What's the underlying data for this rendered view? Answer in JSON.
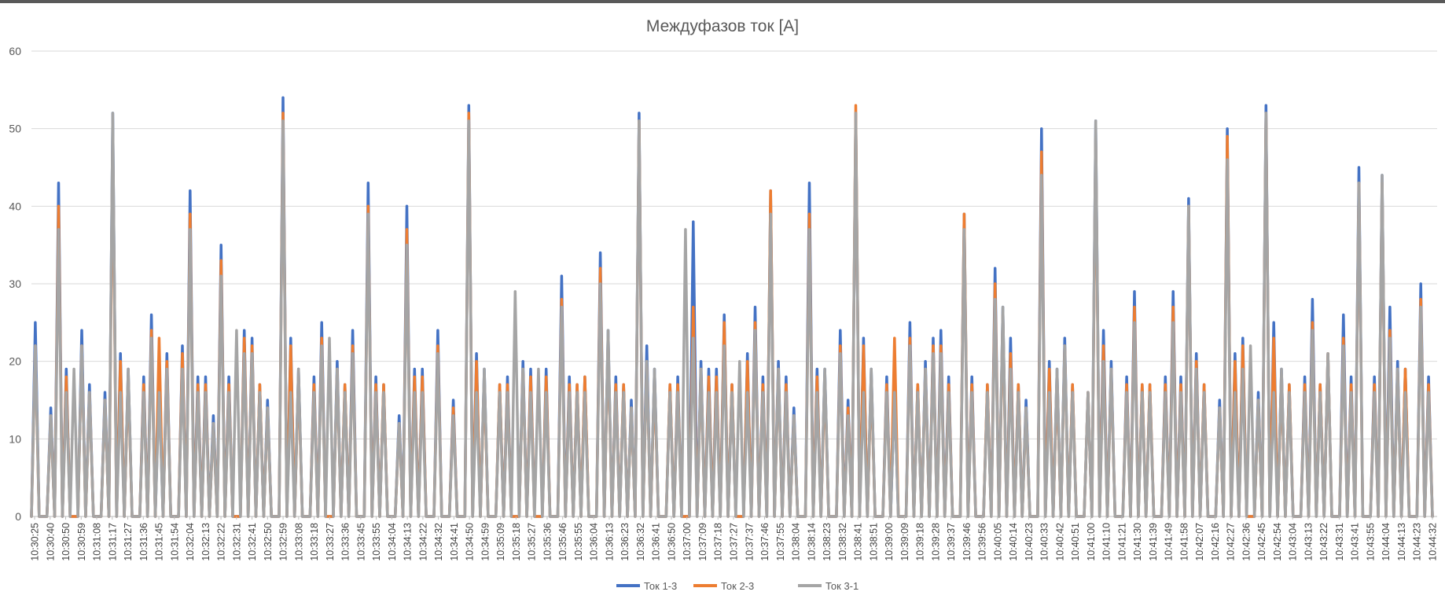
{
  "chart_data": {
    "type": "line",
    "title": "Междуфазов ток [A]",
    "xlabel": "",
    "ylabel": "",
    "ylim": [
      0,
      60
    ],
    "yticks": [
      0,
      10,
      20,
      30,
      40,
      50,
      60
    ],
    "grid": true,
    "legend_position": "bottom",
    "x_tick_labels": [
      "10:30:25",
      "10:30:40",
      "10:30:50",
      "10:30:59",
      "10:31:08",
      "10:31:17",
      "10:31:27",
      "10:31:36",
      "10:31:45",
      "10:31:54",
      "10:32:04",
      "10:32:13",
      "10:32:22",
      "10:32:31",
      "10:32:41",
      "10:32:50",
      "10:32:59",
      "10:33:08",
      "10:33:18",
      "10:33:27",
      "10:33:36",
      "10:33:45",
      "10:33:55",
      "10:34:04",
      "10:34:13",
      "10:34:22",
      "10:34:32",
      "10:34:41",
      "10:34:50",
      "10:34:59",
      "10:35:09",
      "10:35:18",
      "10:35:27",
      "10:35:36",
      "10:35:46",
      "10:35:55",
      "10:36:04",
      "10:36:13",
      "10:36:23",
      "10:36:32",
      "10:36:41",
      "10:36:50",
      "10:37:00",
      "10:37:09",
      "10:37:18",
      "10:37:27",
      "10:37:37",
      "10:37:46",
      "10:37:55",
      "10:38:04",
      "10:38:14",
      "10:38:23",
      "10:38:32",
      "10:38:41",
      "10:38:51",
      "10:39:00",
      "10:39:09",
      "10:39:18",
      "10:39:28",
      "10:39:37",
      "10:39:46",
      "10:39:56",
      "10:40:05",
      "10:40:14",
      "10:40:23",
      "10:40:33",
      "10:40:42",
      "10:40:51",
      "10:41:00",
      "10:41:10",
      "10:41:21",
      "10:41:30",
      "10:41:39",
      "10:41:49",
      "10:41:58",
      "10:42:07",
      "10:42:16",
      "10:42:27",
      "10:42:36",
      "10:42:45",
      "10:42:54",
      "10:43:04",
      "10:43:13",
      "10:43:22",
      "10:43:31",
      "10:43:41",
      "10:43:55",
      "10:44:04",
      "10:44:13",
      "10:44:23",
      "10:44:32"
    ],
    "series": [
      {
        "name": "Ток 1-3",
        "color": "#4472C4",
        "peaks": [
          25,
          0,
          14,
          43,
          19,
          0,
          24,
          17,
          0,
          16,
          52,
          21,
          19,
          0,
          18,
          26,
          17,
          21,
          0,
          22,
          42,
          18,
          18,
          13,
          35,
          18,
          0,
          24,
          23,
          17,
          15,
          0,
          54,
          23,
          19,
          0,
          18,
          25,
          0,
          20,
          17,
          24,
          0,
          43,
          18,
          17,
          0,
          13,
          40,
          19,
          19,
          0,
          24,
          0,
          15,
          0,
          53,
          21,
          19,
          0,
          17,
          18,
          0,
          20,
          19,
          0,
          19,
          0,
          31,
          18,
          17,
          18,
          0,
          34,
          24,
          18,
          17,
          15,
          52,
          22,
          19,
          0,
          17,
          18,
          0,
          38,
          20,
          19,
          19,
          26,
          17,
          0,
          21,
          27,
          18,
          42,
          20,
          18,
          14,
          0,
          43,
          19,
          19,
          0,
          24,
          15,
          52,
          23,
          19,
          0,
          18,
          16,
          0,
          25,
          17,
          20,
          23,
          24,
          18,
          0,
          39,
          18,
          0,
          17,
          32,
          27,
          23,
          17,
          15,
          0,
          50,
          20,
          19,
          23,
          17,
          0,
          16,
          51,
          24,
          20,
          0,
          18,
          29,
          17,
          17,
          0,
          18,
          29,
          18,
          41,
          21,
          17,
          0,
          15,
          50,
          21,
          23,
          0,
          16,
          53,
          25,
          19,
          17,
          0,
          18,
          28,
          17,
          21,
          0,
          26,
          18,
          45,
          0,
          18,
          44,
          27,
          20,
          19,
          0,
          30,
          18
        ],
        "mins": [
          0,
          0,
          0,
          0,
          0,
          0,
          0,
          0,
          0,
          0,
          0,
          0,
          0,
          0,
          0,
          0,
          0,
          0,
          0,
          0,
          0,
          0,
          0,
          0,
          0,
          0,
          0,
          0,
          0,
          0,
          0,
          0,
          0,
          0,
          0,
          0,
          0,
          0,
          0,
          0,
          0,
          0,
          0,
          0,
          0,
          0,
          0,
          0,
          0,
          0,
          0,
          0,
          0,
          0,
          0,
          0,
          0,
          0,
          0,
          0,
          0,
          0,
          0,
          0,
          0,
          0,
          0,
          0,
          0,
          0,
          0,
          0,
          0,
          0,
          0,
          0,
          0,
          0,
          0,
          0,
          0,
          0,
          0,
          0,
          0,
          0,
          0,
          0,
          0,
          0,
          0,
          0,
          0,
          0,
          0,
          0,
          0,
          0,
          0,
          0,
          0,
          0,
          0,
          0,
          0,
          0,
          0,
          0,
          0,
          0,
          0,
          0,
          0,
          0,
          0,
          0,
          0,
          0,
          0,
          0,
          0,
          0,
          0,
          0,
          0,
          0,
          0,
          0,
          0,
          0,
          0,
          0,
          0,
          0,
          0,
          0,
          0,
          0,
          0,
          0,
          0,
          0,
          0,
          0,
          0,
          0,
          0,
          0,
          0,
          0,
          0,
          0,
          0,
          0,
          0,
          0,
          0,
          0,
          0,
          0,
          0,
          0,
          0,
          0,
          0,
          0,
          0,
          0,
          0,
          0,
          0,
          0,
          0,
          0,
          0,
          0,
          0,
          0,
          0,
          0,
          0,
          0,
          0,
          0,
          0
        ]
      },
      {
        "name": "Ток 2-3",
        "color": "#ED7D31",
        "peaks": [
          22,
          0,
          13,
          40,
          18,
          0,
          22,
          16,
          0,
          15,
          49,
          20,
          18,
          0,
          17,
          24,
          23,
          20,
          0,
          21,
          39,
          17,
          17,
          12,
          33,
          17,
          0,
          23,
          22,
          17,
          14,
          0,
          52,
          22,
          18,
          0,
          17,
          23,
          0,
          19,
          17,
          22,
          0,
          40,
          17,
          17,
          0,
          12,
          37,
          18,
          18,
          0,
          22,
          0,
          14,
          0,
          52,
          20,
          18,
          0,
          17,
          17,
          0,
          19,
          18,
          0,
          18,
          0,
          28,
          17,
          17,
          18,
          0,
          32,
          23,
          17,
          17,
          14,
          51,
          20,
          18,
          0,
          17,
          17,
          0,
          27,
          19,
          18,
          18,
          25,
          17,
          0,
          20,
          25,
          17,
          42,
          19,
          17,
          13,
          0,
          39,
          18,
          18,
          0,
          22,
          14,
          53,
          22,
          18,
          0,
          17,
          23,
          0,
          23,
          17,
          19,
          22,
          22,
          17,
          0,
          39,
          17,
          0,
          17,
          30,
          26,
          21,
          17,
          14,
          0,
          47,
          19,
          18,
          22,
          17,
          0,
          16,
          49,
          22,
          19,
          0,
          17,
          27,
          17,
          17,
          0,
          17,
          27,
          17,
          40,
          20,
          17,
          0,
          14,
          49,
          20,
          22,
          0,
          15,
          52,
          23,
          18,
          17,
          0,
          17,
          25,
          17,
          21,
          0,
          23,
          17,
          43,
          0,
          17,
          43,
          24,
          19,
          19,
          0,
          28,
          17
        ],
        "mins": [
          0,
          0,
          0,
          0,
          0,
          0,
          0,
          0,
          0,
          0,
          0,
          0,
          0,
          0,
          0,
          0,
          0,
          0,
          0,
          0,
          0,
          0,
          0,
          0,
          0,
          0,
          0,
          0,
          0,
          0,
          0,
          0,
          0,
          0,
          0,
          0,
          0,
          0,
          0,
          0,
          0,
          0,
          0,
          0,
          0,
          0,
          0,
          0,
          0,
          0,
          0,
          0,
          0,
          0,
          0,
          0,
          0,
          0,
          0,
          0,
          0,
          0,
          0,
          0,
          0,
          0,
          0,
          0,
          0,
          0,
          0,
          0,
          0,
          0,
          0,
          0,
          0,
          0,
          0,
          0,
          0,
          0,
          0,
          0,
          0,
          0,
          0,
          0,
          0,
          0,
          0,
          0,
          0,
          0,
          0,
          0,
          0,
          0,
          0,
          0,
          0,
          0,
          0,
          0,
          0,
          0,
          0,
          0,
          0,
          0,
          0,
          0,
          0,
          0,
          0,
          0,
          0,
          0,
          0,
          0,
          0,
          0,
          0,
          0,
          0,
          0,
          0,
          0,
          0,
          0,
          0,
          0,
          0,
          0,
          0,
          0,
          0,
          0,
          0,
          0,
          0,
          0,
          0,
          0,
          0,
          0,
          0,
          0,
          0,
          0,
          0,
          0,
          0,
          0,
          0,
          0,
          0,
          0,
          0,
          0,
          0,
          0,
          0,
          0,
          0,
          0,
          0,
          0,
          0,
          0,
          0,
          0,
          0,
          0,
          0,
          0,
          0,
          0,
          0,
          0,
          0,
          0,
          0,
          0,
          0
        ]
      },
      {
        "name": "Ток 3-1",
        "color": "#A5A5A5",
        "peaks": [
          22,
          0,
          13,
          37,
          16,
          19,
          22,
          16,
          0,
          15,
          52,
          16,
          19,
          0,
          16,
          23,
          16,
          19,
          0,
          19,
          37,
          16,
          16,
          12,
          31,
          16,
          24,
          21,
          21,
          16,
          14,
          0,
          51,
          16,
          19,
          0,
          16,
          22,
          23,
          19,
          16,
          21,
          0,
          39,
          16,
          16,
          0,
          12,
          35,
          16,
          16,
          0,
          21,
          0,
          13,
          0,
          51,
          16,
          19,
          0,
          16,
          16,
          29,
          19,
          16,
          19,
          16,
          0,
          27,
          16,
          16,
          16,
          0,
          30,
          24,
          16,
          16,
          14,
          51,
          20,
          19,
          0,
          16,
          16,
          37,
          23,
          19,
          16,
          16,
          22,
          16,
          20,
          16,
          24,
          16,
          39,
          19,
          16,
          13,
          0,
          37,
          16,
          19,
          0,
          21,
          13,
          52,
          16,
          19,
          0,
          16,
          16,
          0,
          22,
          16,
          19,
          21,
          21,
          16,
          0,
          37,
          16,
          0,
          16,
          28,
          27,
          19,
          16,
          14,
          0,
          44,
          16,
          19,
          22,
          16,
          0,
          16,
          51,
          20,
          19,
          0,
          16,
          25,
          16,
          16,
          0,
          16,
          25,
          16,
          40,
          19,
          16,
          0,
          14,
          46,
          16,
          19,
          22,
          15,
          52,
          16,
          19,
          16,
          0,
          16,
          24,
          16,
          21,
          0,
          22,
          16,
          43,
          0,
          16,
          44,
          23,
          19,
          16,
          0,
          27,
          16
        ],
        "mins": [
          0,
          0,
          0,
          0,
          0,
          0,
          0,
          0,
          0,
          0,
          0,
          0,
          0,
          0,
          0,
          0,
          0,
          0,
          0,
          0,
          0,
          0,
          0,
          0,
          0,
          0,
          0,
          0,
          0,
          0,
          0,
          0,
          0,
          0,
          0,
          0,
          0,
          0,
          0,
          0,
          0,
          0,
          0,
          0,
          0,
          0,
          0,
          0,
          0,
          0,
          0,
          0,
          0,
          0,
          0,
          0,
          0,
          0,
          0,
          0,
          0,
          0,
          0,
          0,
          0,
          0,
          0,
          0,
          0,
          0,
          0,
          0,
          0,
          0,
          0,
          0,
          0,
          0,
          0,
          0,
          0,
          0,
          0,
          0,
          0,
          0,
          0,
          0,
          0,
          0,
          0,
          0,
          0,
          0,
          0,
          0,
          0,
          0,
          0,
          0,
          0,
          0,
          0,
          0,
          0,
          0,
          0,
          0,
          0,
          0,
          0,
          0,
          0,
          0,
          0,
          0,
          0,
          0,
          0,
          0,
          0,
          0,
          0,
          0,
          0,
          0,
          0,
          0,
          0,
          0,
          0,
          0,
          0,
          0,
          0,
          0,
          0,
          0,
          0,
          0,
          0,
          0,
          0,
          0,
          0,
          0,
          0,
          0,
          0,
          0,
          0,
          0,
          0,
          0,
          0,
          0,
          0,
          0,
          0,
          0,
          0,
          0,
          0,
          0,
          0,
          0,
          0,
          0,
          0,
          0,
          0,
          0,
          0,
          0,
          0,
          0,
          0,
          0,
          0,
          0,
          0,
          0,
          0,
          0,
          0
        ]
      }
    ]
  }
}
